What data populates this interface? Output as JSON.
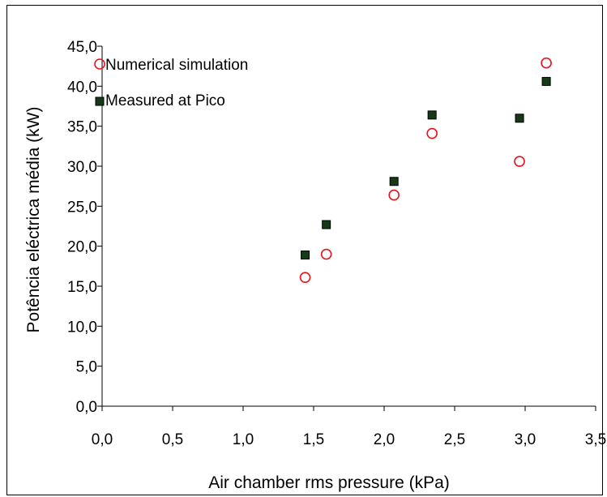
{
  "chart_data": {
    "type": "scatter",
    "xlabel": "Air chamber rms pressure (kPa)",
    "ylabel": "Potência eléctrica média (kW)",
    "xlim": [
      0,
      3.5
    ],
    "ylim": [
      0,
      45
    ],
    "x_ticks": [
      "0,0",
      "0,5",
      "1,0",
      "1,5",
      "2,0",
      "2,5",
      "3,0",
      "3,5"
    ],
    "y_ticks": [
      "0,0",
      "5,0",
      "10,0",
      "15,0",
      "20,0",
      "25,0",
      "30,0",
      "35,0",
      "40,0",
      "45,0"
    ],
    "grid": false,
    "legend_position": "top-left",
    "series": [
      {
        "name": "Numerical simulation",
        "marker": "open-circle",
        "color": "#e8141c",
        "points": [
          [
            1.44,
            16.1
          ],
          [
            1.59,
            19.0
          ],
          [
            2.07,
            26.4
          ],
          [
            2.34,
            34.1
          ],
          [
            2.96,
            30.6
          ],
          [
            3.15,
            42.9
          ]
        ]
      },
      {
        "name": "Measured at Pico",
        "marker": "filled-square",
        "color": "#000000",
        "fill": "#163a16",
        "points": [
          [
            1.44,
            18.9
          ],
          [
            1.59,
            22.7
          ],
          [
            2.07,
            28.1
          ],
          [
            2.34,
            36.4
          ],
          [
            2.96,
            36.0
          ],
          [
            3.15,
            40.6
          ]
        ]
      }
    ]
  }
}
